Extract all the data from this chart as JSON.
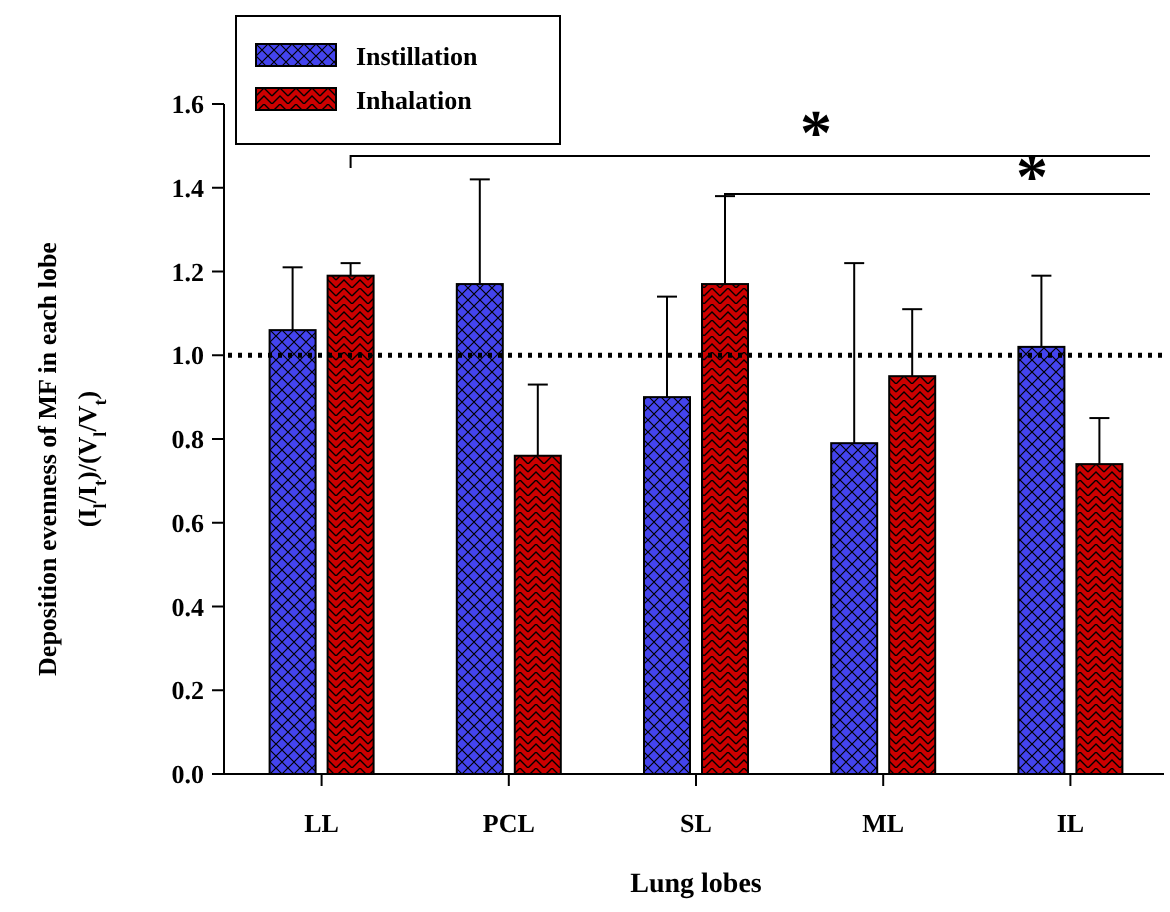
{
  "chart_data": {
    "type": "bar",
    "xlabel": "Lung lobes",
    "ylabel": "Deposition evenness of MF in each lobe\n(I$_{l}$/I$_{t}$)/(V$_{l}$/V$_{t}$)",
    "categories": [
      "LL",
      "PCL",
      "SL",
      "ML",
      "IL"
    ],
    "series": [
      {
        "name": "Instillation",
        "color": "#4444ee",
        "values": [
          1.06,
          1.17,
          0.9,
          0.79,
          1.02
        ],
        "errors": [
          [
            1.06,
            1.21
          ],
          [
            1.17,
            1.42
          ],
          [
            0.9,
            1.14
          ],
          [
            0.79,
            1.22
          ],
          [
            1.02,
            1.19
          ]
        ]
      },
      {
        "name": "Inhalation",
        "color": "#cc0000",
        "values": [
          1.19,
          0.76,
          1.17,
          0.95,
          0.74
        ],
        "errors": [
          [
            1.19,
            1.22
          ],
          [
            0.76,
            0.93
          ],
          [
            1.17,
            1.38
          ],
          [
            0.95,
            1.11
          ],
          [
            0.74,
            0.85
          ]
        ]
      }
    ],
    "ylim": [
      0,
      1.6
    ],
    "yticks": [
      {
        "value": 0,
        "label": "0.0"
      },
      {
        "value": 0.2,
        "label": "0.2"
      },
      {
        "value": 0.4,
        "label": "0.4"
      },
      {
        "value": 0.6,
        "label": "0.6"
      },
      {
        "value": 0.8,
        "label": "0.8"
      },
      {
        "value": 1,
        "label": "1.0"
      },
      {
        "value": 1.2,
        "label": "1.2"
      },
      {
        "value": 1.4,
        "label": "1.4"
      },
      {
        "value": 1.6,
        "label": "1.6"
      }
    ],
    "ref_lines": [
      {
        "axis": "y",
        "value": 1.0,
        "line_style": "dotted"
      }
    ],
    "annotations": [
      "*",
      "*"
    ],
    "legend": "top left",
    "grid": false
  }
}
